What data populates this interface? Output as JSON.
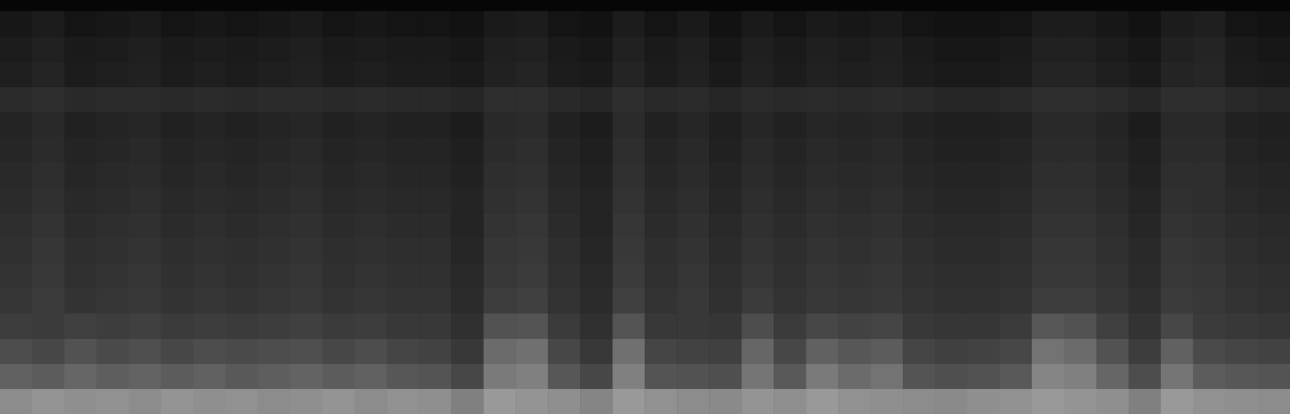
{
  "chart_data": {
    "type": "heatmap",
    "tick_labels": false,
    "grid": false,
    "zlim": [
      0,
      100
    ],
    "colors": [
      "#000000",
      "#ffffff"
    ],
    "cells": [
      [
        55,
        58,
        56,
        57,
        55,
        58,
        56,
        57,
        55,
        56,
        58,
        55,
        57,
        56,
        50,
        60,
        58,
        56,
        52,
        60,
        57,
        55,
        54,
        58,
        56,
        60,
        57,
        56,
        55,
        54,
        56,
        57,
        60,
        58,
        56,
        50,
        60,
        57,
        56,
        55
      ],
      [
        38,
        36,
        40,
        37,
        39,
        36,
        38,
        35,
        37,
        39,
        36,
        38,
        34,
        33,
        28,
        48,
        50,
        34,
        28,
        50,
        33,
        32,
        31,
        46,
        35,
        48,
        42,
        45,
        33,
        31,
        32,
        35,
        52,
        50,
        40,
        30,
        46,
        36,
        34,
        33
      ],
      [
        30,
        28,
        32,
        29,
        31,
        28,
        30,
        29,
        30,
        31,
        28,
        30,
        27,
        26,
        22,
        42,
        44,
        28,
        22,
        44,
        27,
        26,
        25,
        40,
        28,
        38,
        34,
        36,
        27,
        25,
        26,
        28,
        45,
        42,
        32,
        24,
        38,
        29,
        27,
        26
      ],
      [
        24,
        23,
        25,
        24,
        25,
        23,
        24,
        23,
        24,
        25,
        23,
        24,
        22,
        22,
        19,
        32,
        33,
        23,
        19,
        33,
        22,
        22,
        21,
        30,
        23,
        28,
        26,
        27,
        22,
        21,
        21,
        23,
        34,
        32,
        25,
        20,
        28,
        23,
        22,
        21
      ],
      [
        21,
        23,
        20,
        21,
        22,
        20,
        21,
        20,
        21,
        22,
        20,
        21,
        20,
        20,
        17,
        24,
        25,
        20,
        17,
        25,
        20,
        22,
        19,
        23,
        20,
        22,
        21,
        22,
        20,
        19,
        19,
        20,
        24,
        24,
        21,
        18,
        23,
        22,
        20,
        19
      ],
      [
        20,
        22,
        19,
        20,
        21,
        19,
        20,
        19,
        20,
        21,
        19,
        20,
        19,
        19,
        16,
        22,
        23,
        19,
        16,
        23,
        19,
        21,
        18,
        21,
        19,
        21,
        20,
        21,
        19,
        18,
        18,
        19,
        22,
        22,
        20,
        17,
        22,
        21,
        19,
        18
      ],
      [
        19,
        21,
        18,
        19,
        20,
        18,
        19,
        18,
        19,
        20,
        18,
        19,
        18,
        18,
        15,
        21,
        22,
        18,
        15,
        22,
        18,
        20,
        17,
        20,
        18,
        20,
        19,
        20,
        18,
        17,
        17,
        18,
        21,
        21,
        19,
        16,
        21,
        20,
        18,
        17
      ],
      [
        18,
        20,
        17,
        18,
        19,
        17,
        18,
        17,
        18,
        19,
        17,
        18,
        17,
        17,
        14,
        20,
        21,
        17,
        14,
        21,
        17,
        19,
        16,
        19,
        17,
        19,
        18,
        19,
        17,
        16,
        16,
        17,
        20,
        20,
        18,
        15,
        20,
        19,
        17,
        16
      ],
      [
        17,
        19,
        16,
        17,
        18,
        16,
        17,
        16,
        17,
        18,
        16,
        17,
        16,
        16,
        14,
        19,
        20,
        16,
        14,
        20,
        16,
        18,
        15,
        18,
        16,
        18,
        17,
        18,
        16,
        15,
        15,
        16,
        19,
        19,
        17,
        14,
        19,
        18,
        16,
        15
      ],
      [
        16,
        18,
        15,
        16,
        17,
        15,
        16,
        15,
        16,
        17,
        15,
        16,
        15,
        15,
        13,
        18,
        19,
        15,
        13,
        19,
        15,
        17,
        14,
        17,
        15,
        17,
        16,
        17,
        15,
        14,
        14,
        15,
        18,
        18,
        16,
        13,
        18,
        18,
        15,
        14
      ],
      [
        15,
        17,
        14,
        15,
        16,
        14,
        15,
        14,
        15,
        16,
        14,
        15,
        14,
        14,
        12,
        17,
        18,
        14,
        12,
        18,
        14,
        16,
        13,
        16,
        14,
        16,
        15,
        16,
        14,
        13,
        13,
        14,
        17,
        17,
        15,
        12,
        17,
        17,
        14,
        13
      ],
      [
        14,
        16,
        13,
        14,
        15,
        13,
        14,
        13,
        14,
        15,
        13,
        14,
        13,
        13,
        11,
        16,
        17,
        13,
        11,
        17,
        13,
        15,
        12,
        15,
        13,
        15,
        14,
        15,
        13,
        12,
        12,
        13,
        16,
        16,
        14,
        11,
        16,
        16,
        13,
        12
      ],
      [
        17,
        18,
        16,
        17,
        17,
        16,
        17,
        16,
        17,
        17,
        16,
        17,
        16,
        16,
        15,
        18,
        18,
        16,
        15,
        18,
        16,
        17,
        15,
        17,
        16,
        17,
        16,
        17,
        16,
        15,
        15,
        16,
        18,
        18,
        17,
        15,
        18,
        18,
        16,
        15
      ],
      [
        12,
        14,
        11,
        12,
        13,
        11,
        12,
        11,
        12,
        13,
        11,
        12,
        11,
        11,
        10,
        13,
        14,
        11,
        10,
        14,
        11,
        13,
        10,
        13,
        11,
        13,
        12,
        13,
        11,
        10,
        10,
        11,
        14,
        14,
        12,
        10,
        14,
        15,
        11,
        10
      ],
      [
        11,
        13,
        10,
        11,
        12,
        10,
        11,
        10,
        11,
        12,
        10,
        11,
        10,
        10,
        9,
        12,
        13,
        10,
        9,
        13,
        10,
        12,
        9,
        12,
        10,
        12,
        11,
        12,
        10,
        9,
        9,
        10,
        13,
        13,
        11,
        9,
        13,
        14,
        10,
        9
      ],
      [
        9,
        11,
        8,
        9,
        10,
        8,
        9,
        8,
        9,
        10,
        8,
        9,
        8,
        8,
        7,
        10,
        11,
        8,
        7,
        11,
        8,
        10,
        7,
        10,
        8,
        10,
        9,
        10,
        8,
        7,
        7,
        8,
        11,
        11,
        9,
        7,
        11,
        12,
        8,
        7
      ]
    ]
  }
}
